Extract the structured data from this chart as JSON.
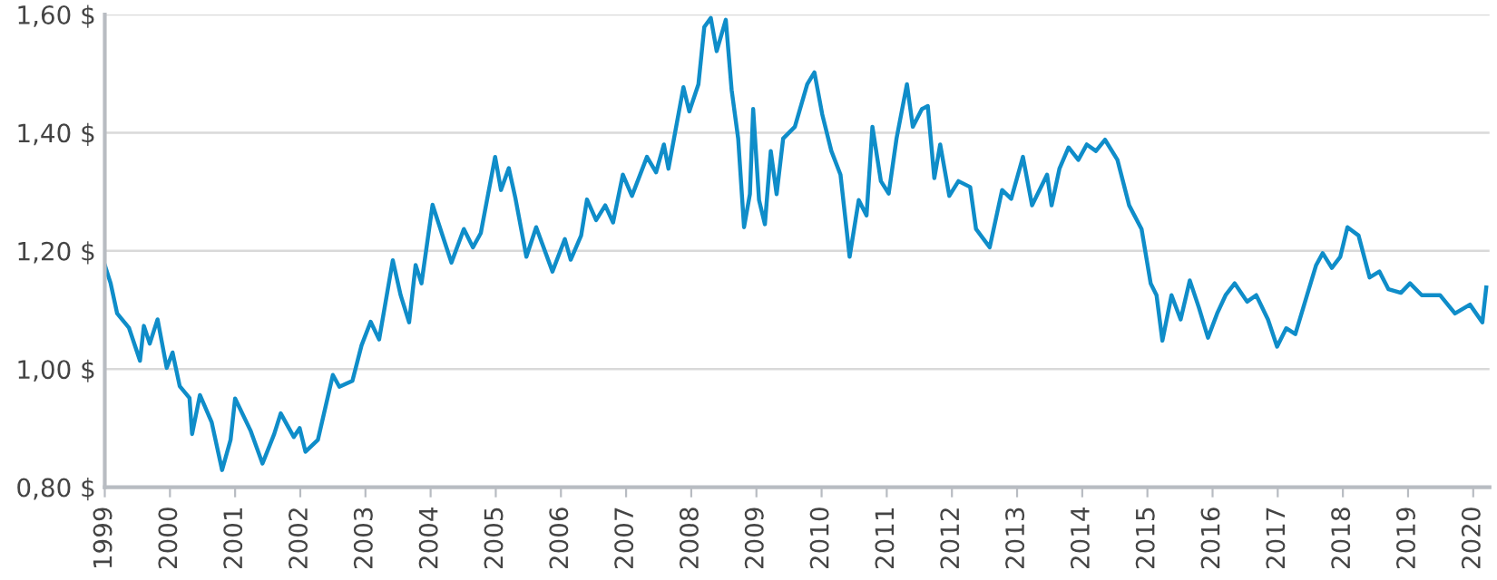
{
  "chart_data": {
    "type": "line",
    "x": [
      1999.0,
      1999.09,
      1999.19,
      1999.37,
      1999.54,
      1999.6,
      1999.69,
      1999.81,
      1999.95,
      2000.04,
      2000.15,
      2000.3,
      2000.34,
      2000.46,
      2000.64,
      2000.8,
      2000.93,
      2001.0,
      2001.24,
      2001.42,
      2001.6,
      2001.7,
      2001.9,
      2001.99,
      2002.08,
      2002.27,
      2002.5,
      2002.6,
      2002.8,
      2002.94,
      2003.08,
      2003.21,
      2003.42,
      2003.54,
      2003.67,
      2003.77,
      2003.86,
      2004.03,
      2004.18,
      2004.32,
      2004.51,
      2004.65,
      2004.77,
      2004.99,
      2005.08,
      2005.2,
      2005.3,
      2005.47,
      2005.62,
      2005.87,
      2006.06,
      2006.15,
      2006.31,
      2006.4,
      2006.54,
      2006.68,
      2006.8,
      2006.95,
      2007.09,
      2007.32,
      2007.46,
      2007.58,
      2007.65,
      2007.88,
      2007.97,
      2008.11,
      2008.2,
      2008.3,
      2008.39,
      2008.53,
      2008.62,
      2008.72,
      2008.81,
      2008.9,
      2008.95,
      2009.04,
      2009.13,
      2009.22,
      2009.31,
      2009.41,
      2009.59,
      2009.78,
      2009.89,
      2010.01,
      2010.15,
      2010.29,
      2010.43,
      2010.57,
      2010.69,
      2010.78,
      2010.91,
      2011.03,
      2011.15,
      2011.31,
      2011.4,
      2011.54,
      2011.63,
      2011.73,
      2011.82,
      2011.96,
      2012.1,
      2012.28,
      2012.37,
      2012.58,
      2012.77,
      2012.91,
      2013.09,
      2013.23,
      2013.46,
      2013.53,
      2013.65,
      2013.79,
      2013.94,
      2014.07,
      2014.21,
      2014.35,
      2014.54,
      2014.72,
      2014.91,
      2015.05,
      2015.14,
      2015.23,
      2015.37,
      2015.51,
      2015.65,
      2015.79,
      2015.93,
      2016.07,
      2016.2,
      2016.34,
      2016.53,
      2016.67,
      2016.85,
      2016.99,
      2017.13,
      2017.27,
      2017.45,
      2017.59,
      2017.69,
      2017.83,
      2017.96,
      2018.07,
      2018.24,
      2018.41,
      2018.56,
      2018.7,
      2018.89,
      2019.03,
      2019.21,
      2019.49,
      2019.72,
      2019.95,
      2020.14,
      2020.2
    ],
    "series": [
      {
        "color": "#0f8dc9",
        "values": [
          1.176,
          1.145,
          1.094,
          1.07,
          1.014,
          1.073,
          1.043,
          1.084,
          1.002,
          1.028,
          0.971,
          0.951,
          0.89,
          0.956,
          0.91,
          0.829,
          0.88,
          0.95,
          0.895,
          0.84,
          0.89,
          0.925,
          0.885,
          0.9,
          0.86,
          0.88,
          0.99,
          0.97,
          0.98,
          1.04,
          1.08,
          1.05,
          1.184,
          1.125,
          1.079,
          1.176,
          1.145,
          1.278,
          1.227,
          1.18,
          1.237,
          1.206,
          1.23,
          1.359,
          1.303,
          1.34,
          1.29,
          1.19,
          1.24,
          1.165,
          1.22,
          1.185,
          1.226,
          1.287,
          1.252,
          1.277,
          1.248,
          1.329,
          1.293,
          1.359,
          1.333,
          1.38,
          1.339,
          1.477,
          1.436,
          1.482,
          1.579,
          1.594,
          1.538,
          1.591,
          1.472,
          1.39,
          1.24,
          1.296,
          1.44,
          1.286,
          1.245,
          1.369,
          1.296,
          1.39,
          1.41,
          1.482,
          1.502,
          1.431,
          1.369,
          1.329,
          1.19,
          1.286,
          1.26,
          1.41,
          1.318,
          1.297,
          1.39,
          1.482,
          1.41,
          1.44,
          1.445,
          1.323,
          1.38,
          1.293,
          1.318,
          1.308,
          1.237,
          1.206,
          1.303,
          1.288,
          1.359,
          1.277,
          1.329,
          1.277,
          1.339,
          1.375,
          1.354,
          1.38,
          1.369,
          1.388,
          1.354,
          1.277,
          1.237,
          1.145,
          1.125,
          1.048,
          1.125,
          1.084,
          1.15,
          1.104,
          1.053,
          1.094,
          1.125,
          1.145,
          1.114,
          1.125,
          1.084,
          1.038,
          1.069,
          1.059,
          1.125,
          1.176,
          1.196,
          1.171,
          1.19,
          1.24,
          1.226,
          1.155,
          1.165,
          1.135,
          1.129,
          1.145,
          1.125,
          1.125,
          1.094,
          1.109,
          1.079,
          1.138
        ]
      }
    ],
    "xlim": [
      1999.0,
      2020.25
    ],
    "xticks": [
      1999,
      2000,
      2001,
      2002,
      2003,
      2004,
      2005,
      2006,
      2007,
      2008,
      2009,
      2010,
      2011,
      2012,
      2013,
      2014,
      2015,
      2016,
      2017,
      2018,
      2019,
      2020
    ],
    "ylim": [
      0.8,
      1.6
    ],
    "yticks": [
      {
        "value": 0.8,
        "label": "0,80 $"
      },
      {
        "value": 1.0,
        "label": "1,00 $"
      },
      {
        "value": 1.2,
        "label": "1,20 $"
      },
      {
        "value": 1.4,
        "label": "1,40 $"
      },
      {
        "value": 1.6,
        "label": "1,60 $"
      }
    ],
    "grid": "y",
    "marker": "none",
    "line_style": "solid"
  }
}
